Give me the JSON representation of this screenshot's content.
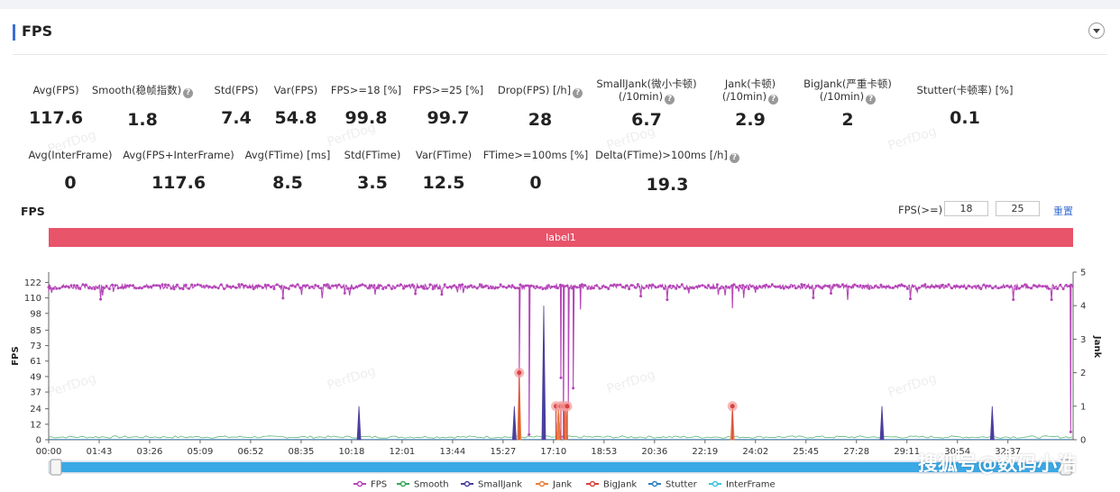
{
  "header": {
    "title": "FPS"
  },
  "metrics_row1": [
    {
      "label": "Avg(FPS)",
      "value": "117.6",
      "help": false
    },
    {
      "label": "Smooth(稳帧指数)",
      "value": "1.8",
      "help": true
    },
    {
      "label": "Std(FPS)",
      "value": "7.4",
      "help": false
    },
    {
      "label": "Var(FPS)",
      "value": "54.8",
      "help": false
    },
    {
      "label": "FPS>=18 [%]",
      "value": "99.8",
      "help": false
    },
    {
      "label": "FPS>=25 [%]",
      "value": "99.7",
      "help": false
    },
    {
      "label": "Drop(FPS) [/h]",
      "value": "28",
      "help": true
    },
    {
      "label": "SmallJank(微小卡顿)",
      "label2": "(/10min)",
      "value": "6.7",
      "help": true
    },
    {
      "label": "Jank(卡顿)",
      "label2": "(/10min)",
      "value": "2.9",
      "help": true
    },
    {
      "label": "BigJank(严重卡顿)",
      "label2": "(/10min)",
      "value": "2",
      "help": true
    },
    {
      "label": "Stutter(卡顿率) [%]",
      "value": "0.1",
      "help": false
    }
  ],
  "metrics_row2": [
    {
      "label": "Avg(InterFrame)",
      "value": "0",
      "help": false
    },
    {
      "label": "Avg(FPS+InterFrame)",
      "value": "117.6",
      "help": false
    },
    {
      "label": "Avg(FTime) [ms]",
      "value": "8.5",
      "help": false
    },
    {
      "label": "Std(FTime)",
      "value": "3.5",
      "help": false
    },
    {
      "label": "Var(FTime)",
      "value": "12.5",
      "help": false
    },
    {
      "label": "FTime>=100ms [%]",
      "value": "0",
      "help": false
    },
    {
      "label": "Delta(FTime)>100ms [/h]",
      "value": "19.3",
      "help": true
    }
  ],
  "watermark": "PerfDog",
  "chart_section": {
    "title": "FPS",
    "threshold_label": "FPS(>=)",
    "threshold_1": "18",
    "threshold_2": "25",
    "reset_label": "重置",
    "band_label": "label1"
  },
  "chart_data": {
    "type": "line",
    "ylabel": "FPS",
    "y2label": "Jank",
    "y_ticks": [
      0,
      12,
      24,
      37,
      49,
      61,
      73,
      85,
      98,
      110,
      122
    ],
    "y2_ticks": [
      0,
      1,
      2,
      3,
      4,
      5
    ],
    "ylim": [
      0,
      130
    ],
    "y2lim": [
      0,
      5
    ],
    "x_ticks": [
      "00:00",
      "01:43",
      "03:26",
      "05:09",
      "06:52",
      "08:35",
      "10:18",
      "12:01",
      "13:44",
      "15:27",
      "17:10",
      "18:53",
      "20:36",
      "22:19",
      "24:02",
      "25:45",
      "27:28",
      "29:11",
      "30:54",
      "32:37"
    ],
    "x_range_sec": [
      0,
      2090
    ],
    "series": [
      {
        "name": "FPS",
        "color": "#b545b8",
        "baseline": 119,
        "dips": [
          {
            "t": 0,
            "v": 115
          },
          {
            "t": 960,
            "v": 50
          },
          {
            "t": 980,
            "v": 4
          },
          {
            "t": 1045,
            "v": 48
          },
          {
            "t": 1050,
            "v": 2
          },
          {
            "t": 1060,
            "v": 25
          },
          {
            "t": 1070,
            "v": 40
          },
          {
            "t": 1085,
            "v": 101
          },
          {
            "t": 1395,
            "v": 102
          },
          {
            "t": 2085,
            "v": 6
          }
        ]
      },
      {
        "name": "Smooth",
        "color": "#3aa65a"
      },
      {
        "name": "SmallJank",
        "color": "#4a3f9e",
        "events": [
          {
            "t": 633,
            "v": 1
          },
          {
            "t": 950,
            "v": 1
          },
          {
            "t": 1010,
            "v": 4
          },
          {
            "t": 1040,
            "v": 1
          },
          {
            "t": 1700,
            "v": 1
          },
          {
            "t": 1925,
            "v": 1
          }
        ]
      },
      {
        "name": "Jank",
        "color": "#e87f3c",
        "events": [
          {
            "t": 960,
            "v": 2
          },
          {
            "t": 1040,
            "v": 1
          },
          {
            "t": 1055,
            "v": 1
          },
          {
            "t": 1395,
            "v": 1
          }
        ]
      },
      {
        "name": "BigJank",
        "color": "#d6423f",
        "events": [
          {
            "t": 960,
            "v": 2
          },
          {
            "t": 1035,
            "v": 1
          },
          {
            "t": 1045,
            "v": 1
          },
          {
            "t": 1052,
            "v": 1
          },
          {
            "t": 1058,
            "v": 1
          },
          {
            "t": 1395,
            "v": 1
          }
        ]
      },
      {
        "name": "Stutter",
        "color": "#2e7fc1"
      },
      {
        "name": "InterFrame",
        "color": "#3dc4d9"
      }
    ]
  },
  "overlay_text": "搜狐号@数码小浩"
}
